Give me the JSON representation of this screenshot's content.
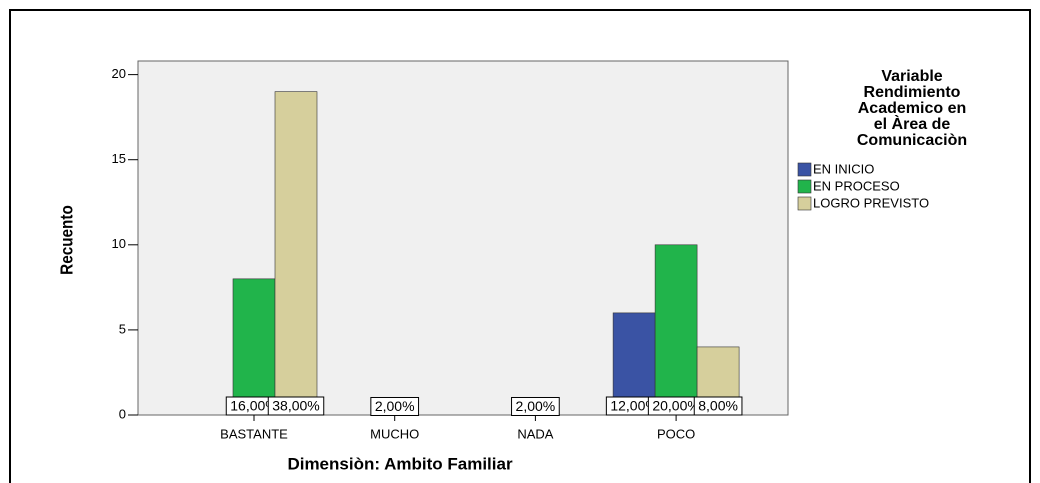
{
  "chart_data": {
    "type": "bar",
    "x_label": "Dimensiòn: Ambito Familiar",
    "y_label": "Recuento",
    "categories": [
      "BASTANTE",
      "MUCHO",
      "NADA",
      "POCO"
    ],
    "series": [
      {
        "name": "EN INICIO",
        "color": "#3a53a4",
        "values": [
          null,
          null,
          null,
          6
        ],
        "value_labels": [
          null,
          null,
          null,
          "12,00%"
        ]
      },
      {
        "name": "EN PROCESO",
        "color": "#21b44b",
        "values": [
          8,
          1,
          1,
          10
        ],
        "value_labels": [
          "16,00%",
          "2,00%",
          "2,00%",
          "20,00%"
        ]
      },
      {
        "name": "LOGRO PREVISTO",
        "color": "#d6cf9c",
        "values": [
          19,
          null,
          null,
          4
        ],
        "value_labels": [
          "38,00%",
          null,
          null,
          "8,00%"
        ]
      }
    ],
    "legend_title": [
      "Variable",
      "Rendimiento",
      "Academico en",
      "el Àrea de",
      "Comunicaciòn"
    ],
    "ylim": [
      0,
      20.8
    ],
    "yticks": [
      0,
      5,
      10,
      15,
      20
    ],
    "grid": false,
    "legend": "right"
  }
}
